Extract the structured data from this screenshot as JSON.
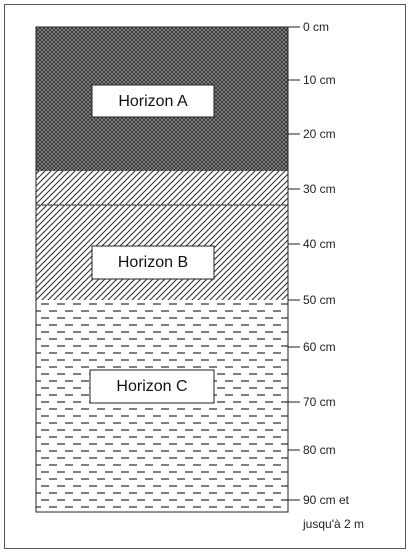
{
  "horizons": [
    {
      "label": "Horizon A"
    },
    {
      "label": "Horizon B"
    },
    {
      "label": "Horizon C"
    }
  ],
  "depth_labels": [
    "0 cm",
    "10 cm",
    "20 cm",
    "30 cm",
    "40 cm",
    "50 cm",
    "60 cm",
    "70 cm",
    "80 cm",
    "90 cm et"
  ],
  "note": "jusqu'à 2 m"
}
